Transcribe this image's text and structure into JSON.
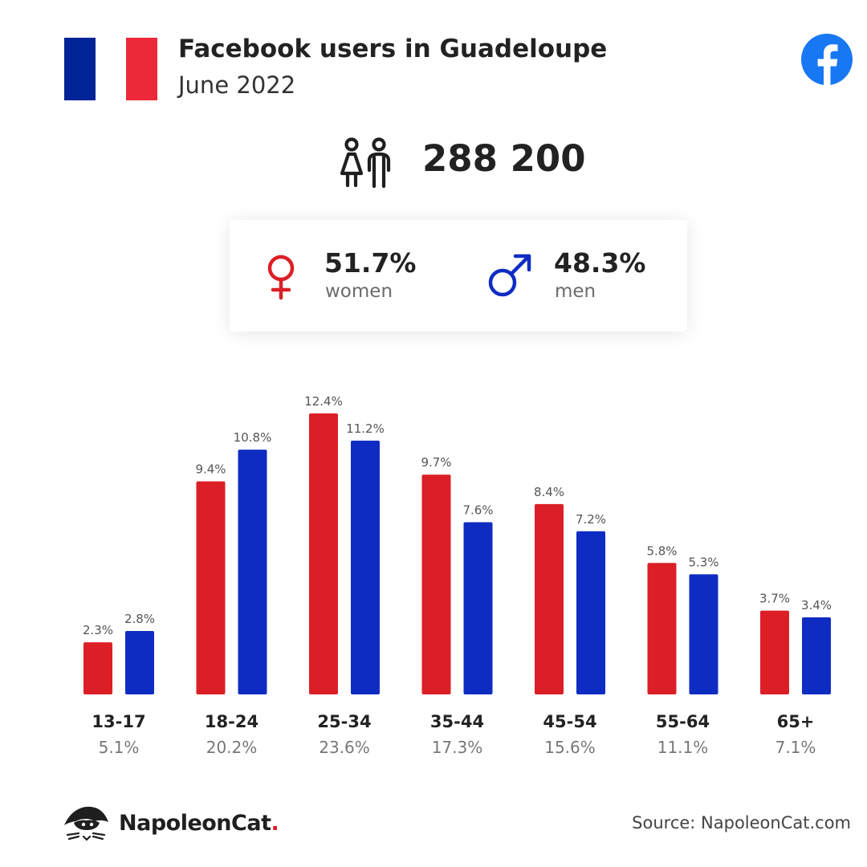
{
  "header": {
    "title": "Facebook users in Guadeloupe",
    "date": "June 2022",
    "flag_colors": [
      "#002395",
      "#ffffff",
      "#ed2939"
    ],
    "platform_icon": "facebook-icon"
  },
  "total": {
    "value": "288 200",
    "icon": "people-icon"
  },
  "gender": {
    "women": {
      "value": "51.7%",
      "label": "women",
      "icon": "female-symbol-icon",
      "color": "#dc1f26"
    },
    "men": {
      "value": "48.3%",
      "label": "men",
      "icon": "male-symbol-icon",
      "color": "#0f2cc2"
    }
  },
  "chart_data": {
    "type": "bar",
    "categories": [
      "13-17",
      "18-24",
      "25-34",
      "35-44",
      "45-54",
      "55-64",
      "65+"
    ],
    "category_totals": [
      "5.1%",
      "20.2%",
      "23.6%",
      "17.3%",
      "15.6%",
      "11.1%",
      "7.1%"
    ],
    "series": [
      {
        "name": "women",
        "color": "#dc1f26",
        "values": [
          2.3,
          9.4,
          12.4,
          9.7,
          8.4,
          5.8,
          3.7
        ],
        "labels": [
          "2.3%",
          "9.4%",
          "12.4%",
          "9.7%",
          "8.4%",
          "5.8%",
          "3.7%"
        ]
      },
      {
        "name": "men",
        "color": "#0f2cc2",
        "values": [
          2.8,
          10.8,
          11.2,
          7.6,
          7.2,
          5.3,
          3.4
        ],
        "labels": [
          "2.8%",
          "10.8%",
          "11.2%",
          "7.6%",
          "7.2%",
          "5.3%",
          "3.4%"
        ]
      }
    ],
    "ylim": [
      0,
      12.4
    ],
    "grid": false,
    "legend": "none"
  },
  "footer": {
    "brand": "NapoleonCat",
    "brand_dot": ".",
    "source": "Source: NapoleonCat.com"
  }
}
